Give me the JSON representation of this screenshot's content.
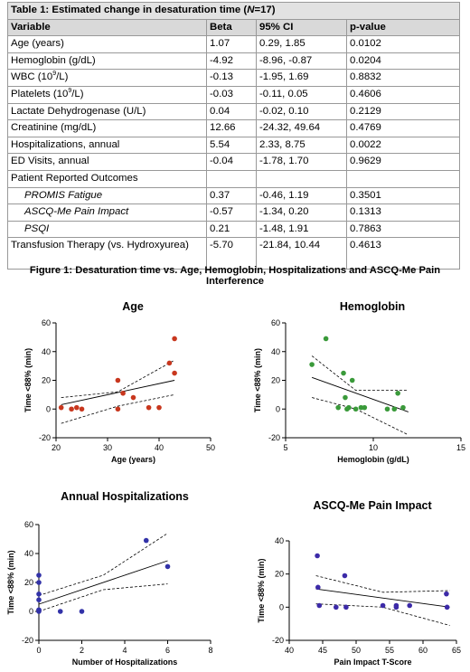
{
  "table": {
    "caption_prefix": "Table 1: Estimated change in desaturation time (",
    "caption_n": "N",
    "caption_suffix": "=17)",
    "headers": [
      "Variable",
      "Beta",
      "95% CI",
      "p-value"
    ],
    "rows": [
      {
        "variable": "Age (years)",
        "beta": "1.07",
        "ci": "0.29, 1.85",
        "p": "0.0102"
      },
      {
        "variable": "Hemoglobin (g/dL)",
        "beta": "-4.92",
        "ci": "-8.96, -0.87",
        "p": "0.0204"
      },
      {
        "variable": "WBC (10",
        "sup": "9",
        "variable_end": "/L)",
        "beta": "-0.13",
        "ci": "-1.95, 1.69",
        "p": "0.8832"
      },
      {
        "variable": "Platelets (10",
        "sup": "9",
        "variable_end": "/L)",
        "beta": "-0.03",
        "ci": "-0.11, 0.05",
        "p": "0.4606"
      },
      {
        "variable": "Lactate Dehydrogenase (U/L)",
        "beta": "0.04",
        "ci": "-0.02, 0.10",
        "p": "0.2129"
      },
      {
        "variable": "Creatinine (mg/dL)",
        "beta": "12.66",
        "ci": "-24.32, 49.64",
        "p": "0.4769"
      },
      {
        "variable": "Hospitalizations, annual",
        "beta": "5.54",
        "ci": "2.33, 8.75",
        "p": "0.0022"
      },
      {
        "variable": "ED Visits, annual",
        "beta": "-0.04",
        "ci": "-1.78, 1.70",
        "p": "0.9629"
      },
      {
        "variable": "Patient Reported Outcomes",
        "beta": "",
        "ci": "",
        "p": ""
      },
      {
        "variable": "PROMIS Fatigue",
        "beta": "0.37",
        "ci": "-0.46, 1.19",
        "p": "0.3501",
        "indent": true
      },
      {
        "variable": "ASCQ-Me Pain Impact",
        "beta": "-0.57",
        "ci": "-1.34, 0.20",
        "p": "0.1313",
        "indent": true
      },
      {
        "variable": "PSQI",
        "beta": "0.21",
        "ci": "-1.48, 1.91",
        "p": "0.7863",
        "indent": true
      },
      {
        "variable": "Transfusion Therapy (vs. Hydroxyurea)",
        "beta": "-5.70",
        "ci": "-21.84, 10.44",
        "p": "0.4613",
        "tall": true
      }
    ]
  },
  "figure_title": "Figure 1: Desaturation time vs. Age, Hemoglobin, Hospitalizations and ASCQ-Me Pain Interference",
  "chart_data": [
    {
      "type": "scatter",
      "title": "Age",
      "xlabel": "Age (years)",
      "ylabel": "Time <88% (min)",
      "xlim": [
        20,
        50
      ],
      "ylim": [
        -20,
        60
      ],
      "xticks": [
        20,
        30,
        40,
        50
      ],
      "yticks": [
        -20,
        0,
        20,
        40,
        60
      ],
      "color": "#c8371e",
      "x": [
        21,
        23,
        24,
        25,
        32,
        32,
        33,
        35,
        38,
        40,
        42,
        43,
        43
      ],
      "y": [
        1,
        0,
        1,
        0,
        20,
        0,
        11,
        8,
        1,
        1,
        32,
        49,
        25
      ],
      "fit": [
        [
          21,
          3
        ],
        [
          43,
          20
        ]
      ],
      "ci_upper": [
        [
          21,
          8
        ],
        [
          32,
          12
        ],
        [
          43,
          34
        ]
      ],
      "ci_lower": [
        [
          21,
          -10
        ],
        [
          32,
          2
        ],
        [
          43,
          10
        ]
      ]
    },
    {
      "type": "scatter",
      "title": "Hemoglobin",
      "xlabel": "Hemoglobin (g/dL)",
      "ylabel": "Time <88% (min)",
      "xlim": [
        5,
        15
      ],
      "ylim": [
        -20,
        60
      ],
      "xticks": [
        5,
        10,
        15
      ],
      "yticks": [
        -20,
        0,
        20,
        40,
        60
      ],
      "color": "#3a9a3a",
      "x": [
        6.5,
        7.3,
        8.0,
        8.3,
        8.4,
        8.5,
        8.6,
        8.8,
        9.0,
        9.3,
        9.5,
        10.8,
        11.2,
        11.4,
        11.7
      ],
      "y": [
        31,
        49,
        1,
        25,
        8,
        0,
        1,
        20,
        0,
        1,
        1,
        0,
        0,
        11,
        1
      ],
      "fit": [
        [
          6.5,
          22
        ],
        [
          12,
          -2
        ]
      ],
      "ci_upper": [
        [
          6.5,
          37
        ],
        [
          9,
          13
        ],
        [
          12,
          13
        ]
      ],
      "ci_lower": [
        [
          6.5,
          8
        ],
        [
          9,
          0
        ],
        [
          12,
          -18
        ]
      ]
    },
    {
      "type": "scatter",
      "title": "Annual Hospitalizations",
      "xlabel": "Number of Hospitalizations",
      "ylabel": "Time <88% (min)",
      "xlim": [
        0,
        8
      ],
      "ylim": [
        -20,
        60
      ],
      "xticks": [
        0,
        2,
        4,
        6,
        8
      ],
      "yticks": [
        -20,
        0,
        20,
        40,
        60
      ],
      "color": "#3232a8",
      "x": [
        0,
        0,
        0,
        0,
        0,
        0,
        0,
        1,
        2,
        5,
        6
      ],
      "y": [
        25,
        20,
        12,
        8,
        1,
        0,
        1,
        0,
        0,
        49,
        31
      ],
      "fit": [
        [
          0,
          5
        ],
        [
          6,
          35
        ]
      ],
      "ci_upper": [
        [
          0,
          11
        ],
        [
          3,
          25
        ],
        [
          6,
          54
        ]
      ],
      "ci_lower": [
        [
          0,
          0
        ],
        [
          3,
          15
        ],
        [
          6,
          19
        ]
      ]
    },
    {
      "type": "scatter",
      "title": "ASCQ-Me Pain Impact",
      "xlabel": "Pain Impact T-Score",
      "ylabel": "Time <88% (min)",
      "xlim": [
        40,
        65
      ],
      "ylim": [
        -20,
        40
      ],
      "xticks": [
        40,
        45,
        50,
        55,
        60,
        65
      ],
      "yticks": [
        -20,
        0,
        20,
        40
      ],
      "color": "#3c2aa8",
      "x": [
        44.2,
        44.3,
        44.5,
        47,
        48.3,
        48.5,
        54,
        56,
        56,
        58,
        63.5,
        63.6
      ],
      "y": [
        31,
        12,
        1,
        0,
        19,
        0,
        1,
        0,
        1,
        1,
        8,
        0
      ],
      "fit": [
        [
          44,
          11
        ],
        [
          64,
          0
        ]
      ],
      "ci_upper": [
        [
          44,
          19
        ],
        [
          54,
          9
        ],
        [
          64,
          10
        ]
      ],
      "ci_lower": [
        [
          44,
          2
        ],
        [
          54,
          0
        ],
        [
          64,
          -11
        ]
      ]
    }
  ]
}
